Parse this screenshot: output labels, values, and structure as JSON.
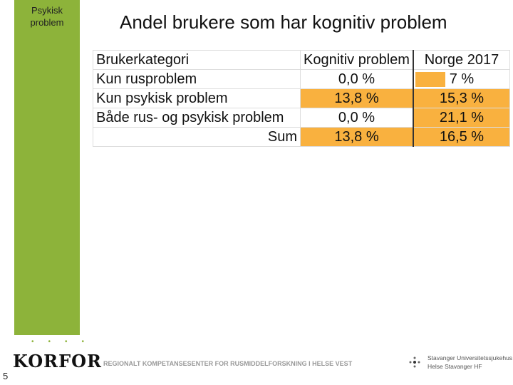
{
  "sidebar": {
    "label": "Psykisk problem"
  },
  "title": "Andel brukere som har kognitiv problem",
  "table": {
    "header": [
      "Brukerkategori",
      "Kognitiv problem",
      "Norge 2017"
    ],
    "rows": [
      [
        "Kun rusproblem",
        "0,0 %",
        "7 %"
      ],
      [
        "Kun psykisk problem",
        "13,8 %",
        "15,3 %"
      ],
      [
        "Både rus- og psykisk problem",
        "0,0 %",
        "21,1 %"
      ],
      [
        "Sum",
        "13,8 %",
        "16,5 %"
      ]
    ]
  },
  "footer": {
    "logo": "KORFOR",
    "tagline": "REGIONALT KOMPETANSESENTER FOR RUSMIDDELFORSKNING I HELSE VEST",
    "hospital": [
      "Stavanger Universitetssjukehus",
      "Helse Stavanger HF"
    ]
  },
  "page_number": "5"
}
